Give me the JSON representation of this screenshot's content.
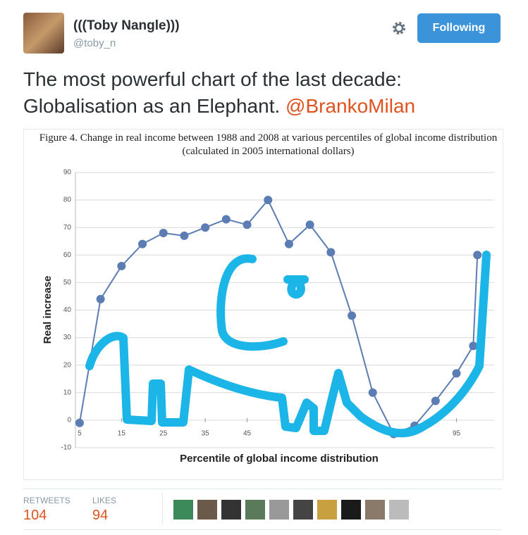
{
  "tweet": {
    "author": {
      "name": "(((Toby Nangle)))",
      "handle": "@toby_n"
    },
    "button": "Following",
    "text": "The most powerful chart of the last decade: Globalisation as an Elephant.",
    "mention": "@BrankoMilan",
    "stats": {
      "retweets_label": "RETWEETS",
      "retweets": "104",
      "likes_label": "LIKES",
      "likes": "94"
    }
  },
  "chart": {
    "type": "line",
    "title": "Figure 4. Change in real income between 1988 and 2008 at various percentiles of global income distribution (calculated in 2005 international dollars)",
    "x_label": "Percentile of global income distribution",
    "y_label": "Real increase",
    "x": [
      5,
      10,
      15,
      20,
      25,
      30,
      35,
      40,
      45,
      50,
      55,
      60,
      65,
      70,
      75,
      80,
      85,
      90,
      95,
      99,
      100
    ],
    "values": [
      -1,
      44,
      56,
      64,
      68,
      67,
      70,
      73,
      71,
      80,
      64,
      71,
      61,
      38,
      10,
      -5,
      -2,
      7,
      17,
      27,
      60
    ],
    "color": "#5b7db3",
    "xlim": [
      4,
      104
    ],
    "ylim": [
      -10,
      90
    ],
    "xticks": [
      5,
      15,
      25,
      35,
      45,
      95
    ],
    "yticks": [
      -10,
      0,
      10,
      20,
      30,
      40,
      50,
      60,
      70,
      80,
      90
    ],
    "grid": true
  }
}
